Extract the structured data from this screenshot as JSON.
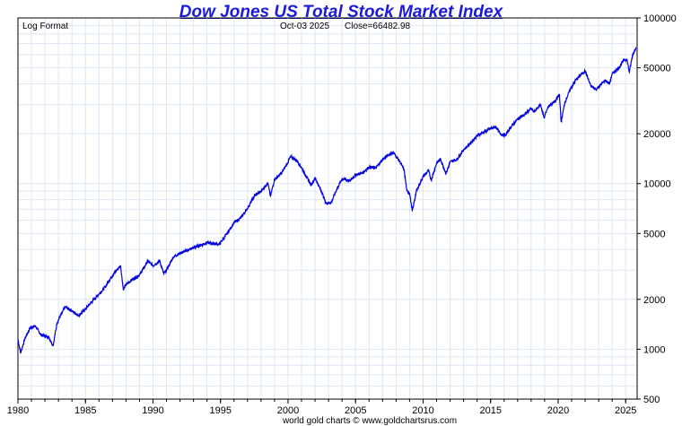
{
  "chart_data": {
    "type": "line",
    "title": "Dow Jones US Total Stock Market Index",
    "scale_label": "Log Format",
    "last_date": "Oct-03  2025",
    "last_close_label": "Close=66482.98",
    "credit": "world gold charts © www.goldchartsrus.com",
    "xlabel": "",
    "ylabel": "",
    "y_scale": "log",
    "ylim": [
      500,
      100000
    ],
    "xlim": [
      1980.0,
      2025.85
    ],
    "y_ticks": [
      500,
      1000,
      2000,
      5000,
      10000,
      20000,
      50000,
      100000
    ],
    "x_ticks": [
      1980,
      1985,
      1990,
      1995,
      2000,
      2005,
      2010,
      2015,
      2020,
      2025
    ],
    "grid": true,
    "series": [
      {
        "color": "#0000e0",
        "points": [
          [
            1980.0,
            1150
          ],
          [
            1980.2,
            950
          ],
          [
            1980.5,
            1150
          ],
          [
            1980.9,
            1350
          ],
          [
            1981.3,
            1380
          ],
          [
            1981.7,
            1220
          ],
          [
            1982.3,
            1180
          ],
          [
            1982.6,
            1050
          ],
          [
            1982.9,
            1450
          ],
          [
            1983.5,
            1800
          ],
          [
            1984.0,
            1700
          ],
          [
            1984.5,
            1600
          ],
          [
            1985.0,
            1750
          ],
          [
            1985.5,
            1950
          ],
          [
            1986.0,
            2150
          ],
          [
            1986.5,
            2400
          ],
          [
            1987.0,
            2800
          ],
          [
            1987.6,
            3200
          ],
          [
            1987.8,
            2300
          ],
          [
            1988.0,
            2450
          ],
          [
            1988.5,
            2650
          ],
          [
            1989.0,
            2800
          ],
          [
            1989.6,
            3400
          ],
          [
            1990.0,
            3200
          ],
          [
            1990.5,
            3400
          ],
          [
            1990.8,
            2850
          ],
          [
            1991.0,
            3000
          ],
          [
            1991.5,
            3600
          ],
          [
            1992.0,
            3800
          ],
          [
            1993.0,
            4100
          ],
          [
            1994.0,
            4400
          ],
          [
            1994.9,
            4300
          ],
          [
            1995.5,
            5000
          ],
          [
            1996.0,
            5800
          ],
          [
            1996.5,
            6200
          ],
          [
            1997.0,
            7100
          ],
          [
            1997.5,
            8400
          ],
          [
            1998.0,
            9000
          ],
          [
            1998.5,
            10100
          ],
          [
            1998.7,
            8400
          ],
          [
            1999.0,
            10600
          ],
          [
            1999.5,
            11500
          ],
          [
            2000.0,
            13500
          ],
          [
            2000.2,
            14600
          ],
          [
            2000.7,
            13600
          ],
          [
            2001.0,
            12500
          ],
          [
            2001.3,
            11200
          ],
          [
            2001.7,
            9800
          ],
          [
            2002.0,
            10800
          ],
          [
            2002.5,
            8900
          ],
          [
            2002.8,
            7600
          ],
          [
            2003.2,
            7700
          ],
          [
            2003.6,
            9200
          ],
          [
            2004.0,
            10700
          ],
          [
            2004.6,
            10400
          ],
          [
            2005.0,
            11300
          ],
          [
            2005.5,
            11600
          ],
          [
            2006.0,
            12600
          ],
          [
            2006.5,
            12400
          ],
          [
            2007.0,
            14000
          ],
          [
            2007.5,
            15000
          ],
          [
            2007.8,
            15400
          ],
          [
            2008.3,
            13500
          ],
          [
            2008.6,
            12000
          ],
          [
            2008.8,
            9000
          ],
          [
            2009.0,
            8800
          ],
          [
            2009.2,
            6800
          ],
          [
            2009.5,
            9000
          ],
          [
            2010.0,
            11000
          ],
          [
            2010.4,
            12000
          ],
          [
            2010.6,
            10500
          ],
          [
            2011.0,
            13300
          ],
          [
            2011.3,
            14000
          ],
          [
            2011.7,
            11500
          ],
          [
            2012.0,
            13500
          ],
          [
            2012.5,
            14000
          ],
          [
            2013.0,
            16000
          ],
          [
            2013.5,
            17500
          ],
          [
            2014.0,
            19500
          ],
          [
            2014.5,
            20500
          ],
          [
            2015.0,
            21500
          ],
          [
            2015.4,
            22000
          ],
          [
            2015.7,
            20000
          ],
          [
            2016.1,
            19500
          ],
          [
            2016.5,
            22000
          ],
          [
            2017.0,
            24500
          ],
          [
            2017.5,
            26000
          ],
          [
            2018.0,
            28500
          ],
          [
            2018.2,
            27000
          ],
          [
            2018.7,
            30000
          ],
          [
            2018.95,
            25000
          ],
          [
            2019.3,
            29500
          ],
          [
            2019.8,
            31500
          ],
          [
            2020.1,
            34500
          ],
          [
            2020.22,
            23500
          ],
          [
            2020.5,
            31000
          ],
          [
            2020.9,
            37000
          ],
          [
            2021.3,
            42000
          ],
          [
            2021.8,
            46500
          ],
          [
            2022.0,
            48000
          ],
          [
            2022.4,
            39000
          ],
          [
            2022.8,
            37000
          ],
          [
            2023.0,
            38500
          ],
          [
            2023.5,
            42000
          ],
          [
            2023.8,
            40000
          ],
          [
            2024.0,
            46000
          ],
          [
            2024.5,
            50000
          ],
          [
            2024.9,
            56000
          ],
          [
            2025.1,
            56000
          ],
          [
            2025.27,
            47000
          ],
          [
            2025.5,
            59000
          ],
          [
            2025.76,
            66483
          ]
        ]
      }
    ]
  }
}
